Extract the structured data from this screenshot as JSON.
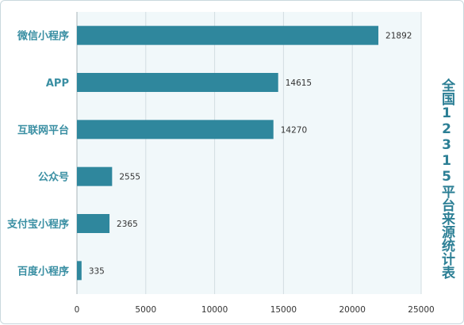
{
  "chart_data": {
    "type": "bar",
    "orientation": "horizontal",
    "title": "全国12315平台来源统计表",
    "categories": [
      "微信小程序",
      "APP",
      "互联网平台",
      "公众号",
      "支付宝小程序",
      "百度小程序"
    ],
    "values": [
      21892,
      14615,
      14270,
      2555,
      2365,
      335
    ],
    "xlim": [
      0,
      25000
    ],
    "xticks": [
      0,
      5000,
      10000,
      15000,
      20000,
      25000
    ],
    "grid": true,
    "bar_color": "#2f879d",
    "plot_background": "#f1f8fa",
    "label_color": "#3a8fa3",
    "title_color": "#2c7f95"
  }
}
